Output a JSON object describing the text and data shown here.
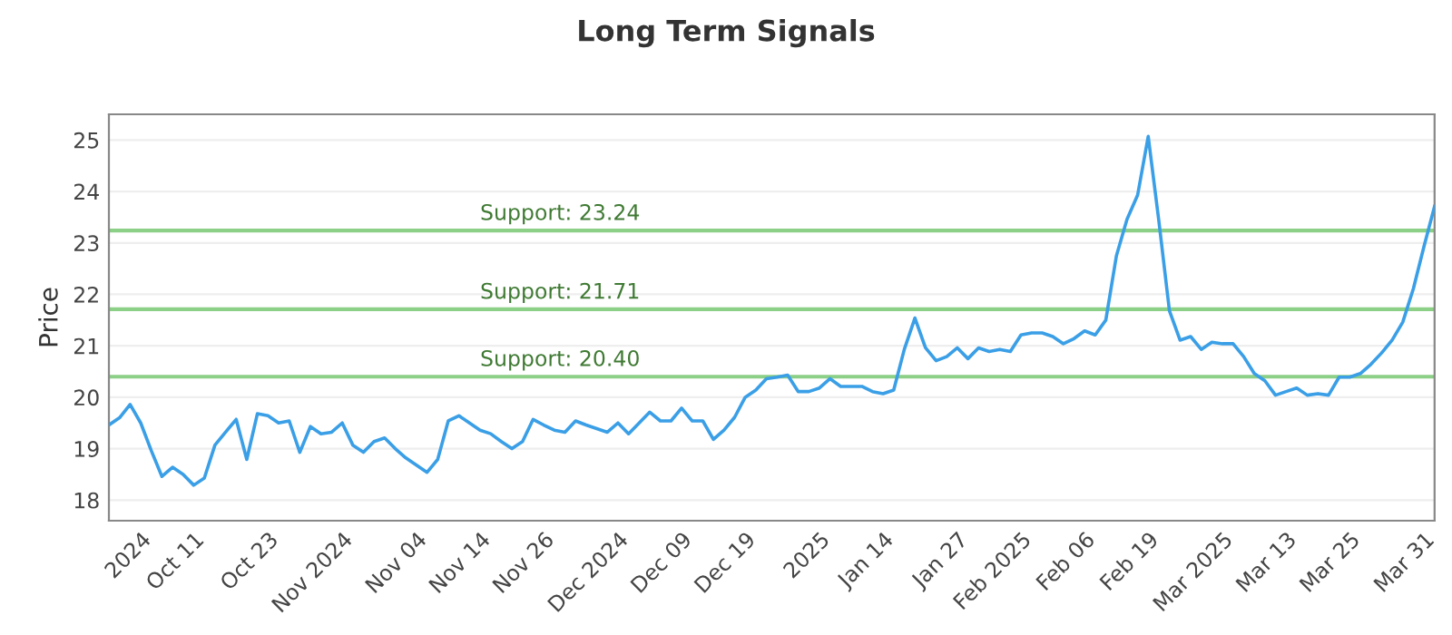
{
  "chart_data": {
    "type": "line",
    "title": "Long Term Signals",
    "ylabel": "Price",
    "categories": [
      null,
      null,
      null,
      "2024",
      null,
      null,
      null,
      null,
      "Oct 11",
      null,
      null,
      null,
      null,
      null,
      null,
      "Oct 23",
      null,
      null,
      null,
      null,
      null,
      null,
      "Nov 2024",
      null,
      null,
      null,
      null,
      null,
      null,
      "Nov 04",
      null,
      null,
      null,
      null,
      null,
      "Nov 14",
      null,
      null,
      null,
      null,
      null,
      "Nov 26",
      null,
      null,
      null,
      null,
      null,
      null,
      "Dec 2024",
      null,
      null,
      null,
      null,
      null,
      "Dec 09",
      null,
      null,
      null,
      null,
      null,
      "Dec 19",
      null,
      null,
      null,
      null,
      null,
      null,
      "2025",
      null,
      null,
      null,
      null,
      null,
      "Jan 14",
      null,
      null,
      null,
      null,
      null,
      null,
      "Jan 27",
      null,
      null,
      null,
      null,
      null,
      "Feb 2025",
      null,
      null,
      null,
      null,
      null,
      "Feb 06",
      null,
      null,
      null,
      null,
      null,
      "Feb 19",
      null,
      null,
      null,
      null,
      null,
      null,
      "Mar 2025",
      null,
      null,
      null,
      null,
      null,
      "Mar 13",
      null,
      null,
      null,
      null,
      null,
      "Mar 25",
      null,
      null,
      null,
      null,
      null,
      null,
      "Mar 31",
      null
    ],
    "series": [
      {
        "color": "#3a9fe6",
        "values": [
          19.46,
          19.6,
          19.86,
          19.5,
          18.96,
          18.46,
          18.64,
          18.5,
          18.29,
          18.43,
          19.07,
          19.32,
          19.57,
          18.79,
          19.68,
          19.64,
          19.5,
          19.54,
          18.93,
          19.43,
          19.29,
          19.32,
          19.5,
          19.07,
          18.93,
          19.14,
          19.21,
          19.0,
          18.82,
          18.68,
          18.54,
          18.79,
          19.54,
          19.64,
          19.5,
          19.36,
          19.29,
          19.14,
          19.0,
          19.14,
          19.57,
          19.46,
          19.36,
          19.32,
          19.54,
          19.46,
          19.39,
          19.32,
          19.5,
          19.29,
          19.5,
          19.71,
          19.54,
          19.54,
          19.79,
          19.54,
          19.54,
          19.18,
          19.36,
          19.61,
          20.0,
          20.14,
          20.36,
          20.39,
          20.43,
          20.11,
          20.11,
          20.18,
          20.36,
          20.21,
          20.21,
          20.21,
          20.11,
          20.07,
          20.14,
          20.93,
          21.54,
          20.96,
          20.71,
          20.79,
          20.96,
          20.75,
          20.96,
          20.89,
          20.93,
          20.89,
          21.21,
          21.25,
          21.25,
          21.18,
          21.04,
          21.14,
          21.29,
          21.21,
          21.5,
          22.75,
          23.46,
          23.93,
          25.07,
          23.43,
          21.68,
          21.11,
          21.18,
          20.93,
          21.07,
          21.04,
          21.04,
          20.79,
          20.46,
          20.32,
          20.04,
          20.11,
          20.18,
          20.04,
          20.07,
          20.04,
          20.39,
          20.39,
          20.46,
          20.64,
          20.86,
          21.11,
          21.46,
          22.11,
          22.93,
          23.71
        ]
      }
    ],
    "ylim": [
      17.6,
      25.5
    ],
    "yticks": [
      18,
      19,
      20,
      21,
      22,
      23,
      24,
      25
    ],
    "ref_lines": [
      {
        "axis": "y",
        "value": 23.24,
        "label": "Support: 23.24",
        "color": "#8ccf86"
      },
      {
        "axis": "y",
        "value": 21.71,
        "label": "Support: 21.71",
        "color": "#8ccf86"
      },
      {
        "axis": "y",
        "value": 20.4,
        "label": "Support: 20.40",
        "color": "#8ccf86"
      }
    ],
    "grid": "y",
    "legend": false,
    "marker": "none",
    "line_style": "solid"
  }
}
